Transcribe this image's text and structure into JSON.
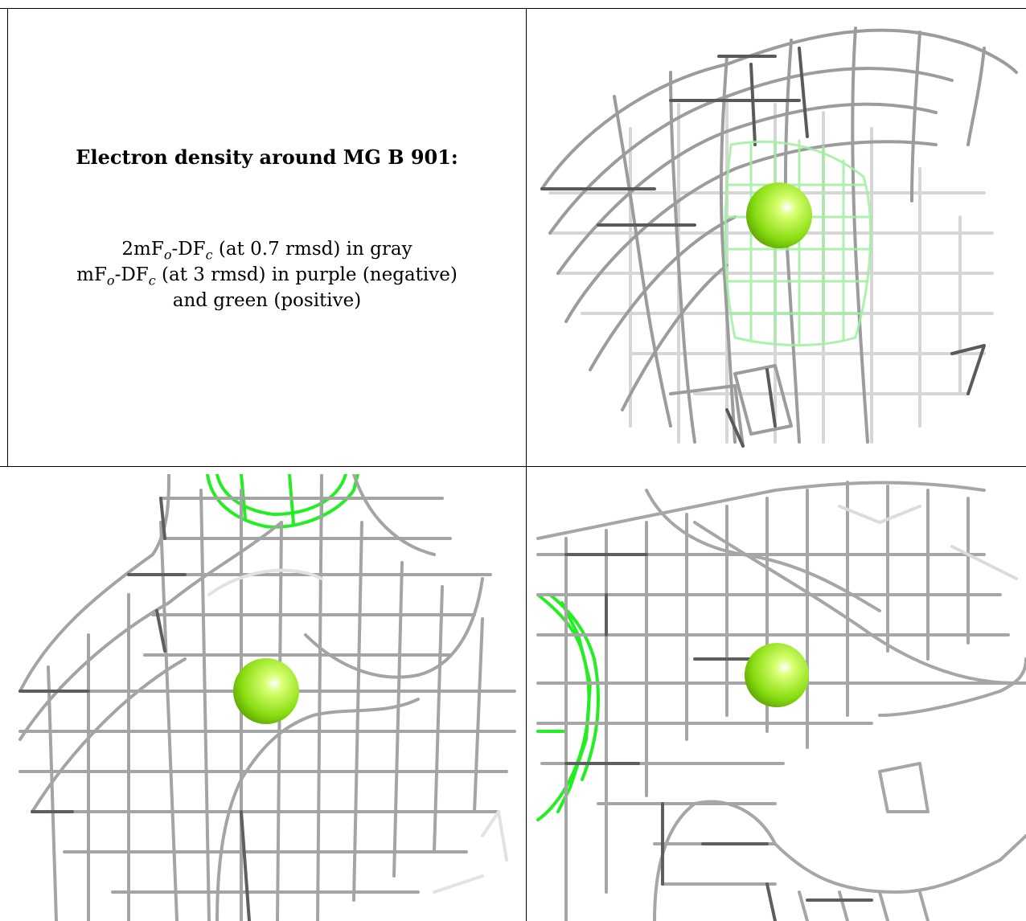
{
  "caption": {
    "title": "Electron density around MG B 901:",
    "line1_pre": "2mF",
    "line1_sub1": "o",
    "line1_mid": "-DF",
    "line1_sub2": "c",
    "line1_post": " (at 0.7 rmsd) in gray",
    "line2_pre": "mF",
    "line2_sub1": "o",
    "line2_mid": "-DF",
    "line2_sub2": "c",
    "line2_post": " (at 3 rmsd) in purple (negative)",
    "line3": "and green (positive)"
  },
  "colors": {
    "mesh_gray": "#9a9a9a",
    "mesh_dark": "#5e5e5e",
    "mesh_light": "#d4d4d4",
    "mesh_green": "#22ee22",
    "sphere": "#88dd11"
  }
}
